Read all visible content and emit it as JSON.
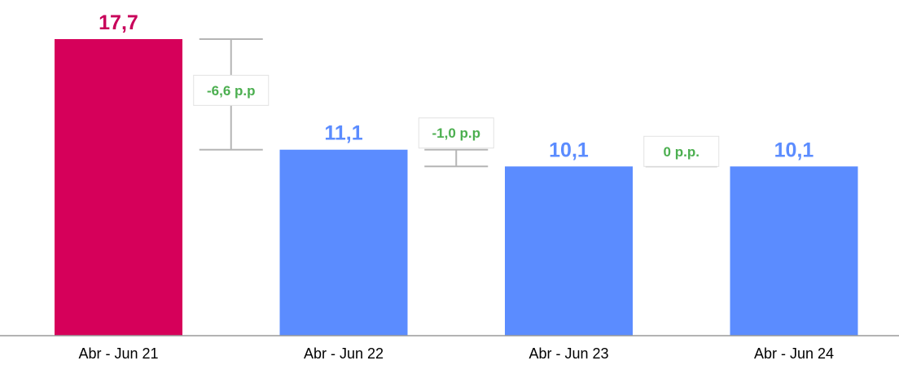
{
  "chart_data": {
    "type": "bar",
    "categories": [
      "Abr - Jun 21",
      "Abr - Jun 22",
      "Abr - Jun 23",
      "Abr - Jun 24"
    ],
    "values": [
      17.7,
      11.1,
      10.1,
      10.1
    ],
    "value_labels": [
      "17,7",
      "11,1",
      "10,1",
      "10,1"
    ],
    "bar_colors": [
      "#d6005a",
      "#5b8cff",
      "#5b8cff",
      "#5b8cff"
    ],
    "value_label_colors": [
      "#c8005a",
      "#5b8cff",
      "#5b8cff",
      "#5b8cff"
    ],
    "ylim": [
      0,
      17.7
    ],
    "grid": false,
    "legend": "none",
    "differences": [
      {
        "from": 0,
        "to": 1,
        "label": "-6,6 p.p"
      },
      {
        "from": 1,
        "to": 2,
        "label": "-1,0 p.p"
      },
      {
        "from": 2,
        "to": 3,
        "label": "0 p.p."
      }
    ],
    "difference_label_color": "#4caf50",
    "bracket_color": "#b5b5b5",
    "axis_color": "#9a9a9a"
  }
}
